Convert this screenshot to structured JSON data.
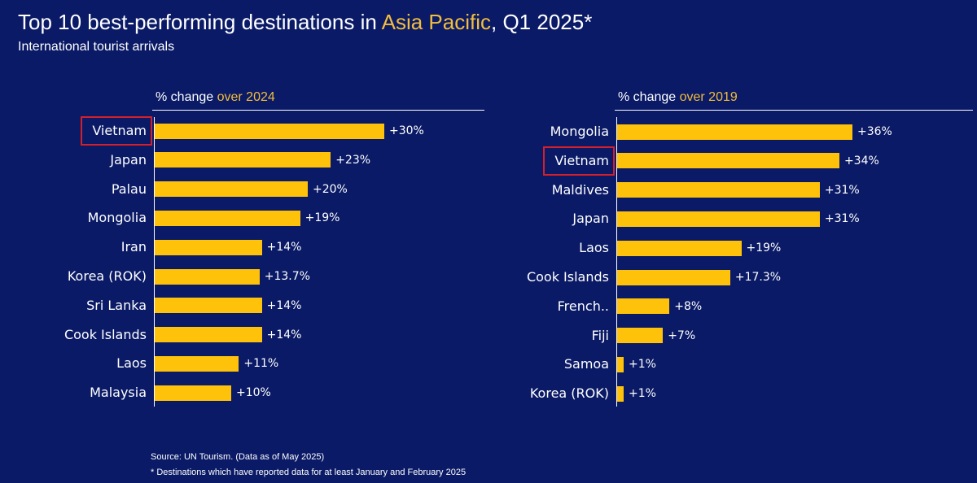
{
  "title": {
    "before": "Top 10 best-performing destinations in ",
    "highlight": "Asia Pacific",
    "after": ", Q1 2025*"
  },
  "subtitle": "International tourist arrivals",
  "colors": {
    "background": "#0a1a66",
    "bar": "#ffc20a",
    "accent_text": "#f2bd3c",
    "highlight_box": "#d4202a"
  },
  "chart_data": [
    {
      "type": "bar",
      "orientation": "horizontal",
      "header_prefix": "% change ",
      "header_highlight": "over 2024",
      "categories": [
        "Vietnam",
        "Japan",
        "Palau",
        "Mongolia",
        "Iran",
        "Korea (ROK)",
        "Sri Lanka",
        "Cook Islands",
        "Laos",
        "Malaysia"
      ],
      "values": [
        30,
        23,
        20,
        19,
        14,
        13.7,
        14,
        14,
        11,
        10
      ],
      "value_labels": [
        "+30%",
        "+23%",
        "+20%",
        "+19%",
        "+14%",
        "+13.7%",
        "+14%",
        "+14%",
        "+11%",
        "+10%"
      ],
      "highlighted_category": "Vietnam",
      "xlim": [
        0,
        30
      ]
    },
    {
      "type": "bar",
      "orientation": "horizontal",
      "header_prefix": "% change ",
      "header_highlight": "over 2019",
      "categories": [
        "Mongolia",
        "Vietnam",
        "Maldives",
        "Japan",
        "Laos",
        "Cook Islands",
        "French..",
        "Fiji",
        "Samoa",
        "Korea (ROK)"
      ],
      "values": [
        36,
        34,
        31,
        31,
        19,
        17.3,
        8,
        7,
        1,
        1
      ],
      "value_labels": [
        "+36%",
        "+34%",
        "+31%",
        "+31%",
        "+19%",
        "+17.3%",
        "+8%",
        "+7%",
        "+1%",
        "+1%"
      ],
      "highlighted_category": "Vietnam",
      "xlim": [
        0,
        36
      ]
    }
  ],
  "footer": {
    "source": "Source: UN Tourism. (Data as of May 2025)",
    "note": "* Destinations which have reported data for at least January and February 2025"
  }
}
